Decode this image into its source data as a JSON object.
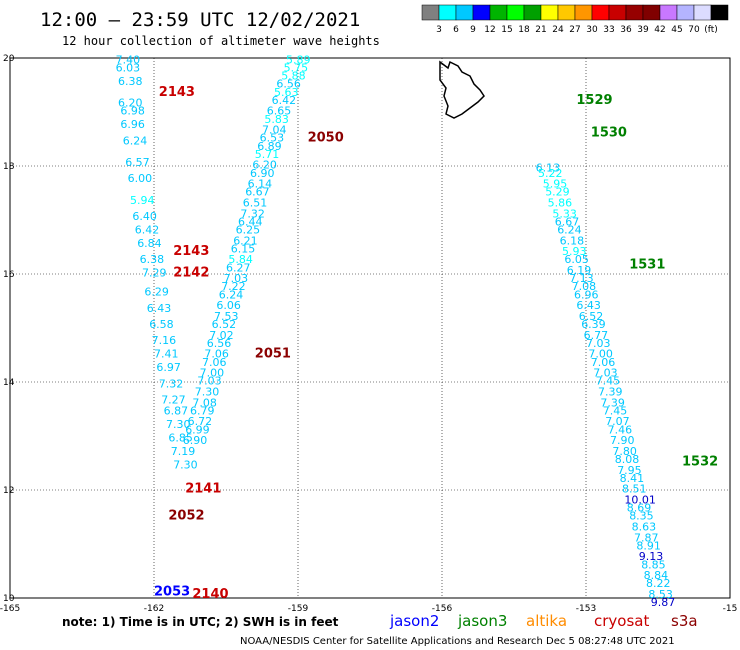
{
  "header": {
    "title": "12:00 — 23:59 UTC 12/02/2021",
    "subtitle": "12 hour collection of altimeter wave heights"
  },
  "legend": {
    "colors": [
      "#808080",
      "#00ffff",
      "#00c8ff",
      "#0000ff",
      "#00b400",
      "#00ff00",
      "#00a000",
      "#ffff00",
      "#ffc800",
      "#ff9600",
      "#ff0000",
      "#c80000",
      "#960000",
      "#800000",
      "#c878ff",
      "#b4b4ff",
      "#dcdcff",
      "#000000"
    ],
    "labels": [
      "3",
      "6",
      "9",
      "12",
      "15",
      "18",
      "21",
      "24",
      "27",
      "30",
      "33",
      "36",
      "39",
      "42",
      "45",
      "70",
      "(ft)"
    ]
  },
  "chart_data": {
    "type": "scatter",
    "title": "12 hour collection of altimeter wave heights",
    "xlabel": "",
    "ylabel": "",
    "xlim": [
      -165,
      -150
    ],
    "ylim": [
      10,
      20
    ],
    "grid": true,
    "x_ticks": [
      "-165",
      "-162",
      "-159",
      "-156",
      "-153",
      "-15"
    ],
    "y_ticks": [
      "10",
      "12",
      "14",
      "16",
      "18",
      "20"
    ],
    "swh_color_scale_ft": [
      3,
      6,
      9,
      12,
      15,
      18,
      21,
      24,
      27,
      30,
      33,
      36,
      39,
      42,
      45,
      70
    ],
    "series": [
      {
        "name": "jason2",
        "color": "#0000ff",
        "points": []
      },
      {
        "name": "jason3",
        "color": "#008000",
        "points": [
          [
            -154.05,
            17.9,
            "6.13"
          ],
          [
            -154.0,
            17.8,
            "5.22"
          ],
          [
            -153.9,
            17.6,
            "5.95"
          ],
          [
            -153.85,
            17.45,
            "5.29"
          ],
          [
            -153.8,
            17.25,
            "5.86"
          ],
          [
            -153.7,
            17.05,
            "5.33"
          ],
          [
            -153.65,
            16.9,
            "6.67"
          ],
          [
            -153.6,
            16.75,
            "6.24"
          ],
          [
            -153.55,
            16.55,
            "6.18"
          ],
          [
            -153.5,
            16.35,
            "5.93"
          ],
          [
            -153.45,
            16.2,
            "6.05"
          ],
          [
            -153.4,
            16.0,
            "6.19"
          ],
          [
            -153.35,
            15.85,
            "7.13"
          ],
          [
            -153.3,
            15.7,
            "7.08"
          ],
          [
            -153.25,
            15.55,
            "6.96"
          ],
          [
            -153.2,
            15.35,
            "6.43"
          ],
          [
            -153.15,
            15.15,
            "6.52"
          ],
          [
            -153.1,
            15.0,
            "6.39"
          ],
          [
            -153.05,
            14.8,
            "6.77"
          ],
          [
            -153.0,
            14.65,
            "7.03"
          ],
          [
            -152.95,
            14.45,
            "7.00"
          ],
          [
            -152.9,
            14.3,
            "7.06"
          ],
          [
            -152.85,
            14.1,
            "7.03"
          ],
          [
            -152.8,
            13.95,
            "7.45"
          ],
          [
            -152.75,
            13.75,
            "7.39"
          ],
          [
            -152.7,
            13.55,
            "7.39"
          ],
          [
            -152.65,
            13.4,
            "7.45"
          ],
          [
            -152.6,
            13.2,
            "7.07"
          ],
          [
            -152.55,
            13.05,
            "7.46"
          ],
          [
            -152.5,
            12.85,
            "7.90"
          ],
          [
            -152.45,
            12.65,
            "7.80"
          ],
          [
            -152.4,
            12.5,
            "8.08"
          ],
          [
            -152.35,
            12.3,
            "7.95"
          ],
          [
            -152.3,
            12.15,
            "8.41"
          ],
          [
            -152.25,
            11.95,
            "8.51"
          ],
          [
            -152.2,
            11.75,
            "10.01"
          ],
          [
            -152.15,
            11.6,
            "8.69"
          ],
          [
            -152.1,
            11.45,
            "8.35"
          ],
          [
            -152.05,
            11.25,
            "8.63"
          ],
          [
            -152.0,
            11.05,
            "7.87"
          ],
          [
            -151.95,
            10.9,
            "8.91"
          ],
          [
            -151.9,
            10.7,
            "9.13"
          ],
          [
            -151.85,
            10.55,
            "8.85"
          ],
          [
            -151.8,
            10.35,
            "8.84"
          ],
          [
            -151.75,
            10.2,
            "8.22"
          ],
          [
            -151.7,
            10.0,
            "8.53"
          ],
          [
            -151.65,
            9.85,
            "9.87"
          ]
        ]
      },
      {
        "name": "altika",
        "color": "#ff8c00",
        "points": []
      },
      {
        "name": "cryosat",
        "color": "#c80000",
        "points": [
          [
            -159.25,
            19.9,
            "5.89"
          ],
          [
            -159.3,
            19.75,
            "5.75"
          ],
          [
            -159.35,
            19.6,
            "5.88"
          ],
          [
            -159.45,
            19.45,
            "6.56"
          ],
          [
            -159.5,
            19.3,
            "5.63"
          ],
          [
            -159.55,
            19.15,
            "6.42"
          ],
          [
            -159.65,
            18.95,
            "6.65"
          ],
          [
            -159.7,
            18.8,
            "5.83"
          ],
          [
            -159.75,
            18.6,
            "7.04"
          ],
          [
            -159.8,
            18.45,
            "6.53"
          ],
          [
            -159.85,
            18.3,
            "6.89"
          ],
          [
            -159.9,
            18.15,
            "5.71"
          ],
          [
            -159.95,
            17.95,
            "6.20"
          ],
          [
            -160.0,
            17.8,
            "6.90"
          ],
          [
            -160.05,
            17.6,
            "6.14"
          ],
          [
            -160.1,
            17.45,
            "6.67"
          ],
          [
            -160.15,
            17.25,
            "6.51"
          ],
          [
            -160.2,
            17.05,
            "7.32"
          ],
          [
            -160.25,
            16.9,
            "6.44"
          ],
          [
            -160.3,
            16.75,
            "6.25"
          ],
          [
            -160.35,
            16.55,
            "6.21"
          ],
          [
            -160.4,
            16.4,
            "6.15"
          ],
          [
            -160.45,
            16.2,
            "5.84"
          ],
          [
            -160.5,
            16.05,
            "6.27"
          ],
          [
            -160.55,
            15.85,
            "7.03"
          ],
          [
            -160.6,
            15.7,
            "7.22"
          ],
          [
            -160.65,
            15.55,
            "6.24"
          ],
          [
            -160.7,
            15.35,
            "6.06"
          ],
          [
            -160.75,
            15.15,
            "7.53"
          ],
          [
            -160.8,
            15.0,
            "6.52"
          ],
          [
            -160.85,
            14.8,
            "7.02"
          ],
          [
            -160.9,
            14.65,
            "6.56"
          ],
          [
            -160.95,
            14.45,
            "7.06"
          ],
          [
            -161.0,
            14.3,
            "7.06"
          ],
          [
            -161.05,
            14.1,
            "7.00"
          ],
          [
            -161.1,
            13.95,
            "7.03"
          ],
          [
            -161.15,
            13.75,
            "7.30"
          ],
          [
            -161.2,
            13.55,
            "7.08"
          ],
          [
            -161.25,
            13.4,
            "6.79"
          ],
          [
            -161.3,
            13.2,
            "6.72"
          ],
          [
            -161.35,
            13.05,
            "6.99"
          ],
          [
            -161.4,
            12.85,
            "6.90"
          ]
        ]
      },
      {
        "name": "s3a",
        "color": "#8b0000",
        "points": [
          [
            -162.8,
            19.9,
            "7.40"
          ],
          [
            -162.8,
            19.75,
            "6.03"
          ],
          [
            -162.75,
            19.5,
            "6.38"
          ],
          [
            -162.75,
            19.1,
            "6.20"
          ],
          [
            -162.7,
            18.95,
            "6.98"
          ],
          [
            -162.7,
            18.7,
            "6.96"
          ],
          [
            -162.65,
            18.4,
            "6.24"
          ],
          [
            -162.6,
            18.0,
            "6.57"
          ],
          [
            -162.55,
            17.7,
            "6.00"
          ],
          [
            -162.5,
            17.3,
            "5.94"
          ],
          [
            -162.45,
            17.0,
            "6.40"
          ],
          [
            -162.4,
            16.75,
            "6.42"
          ],
          [
            -162.35,
            16.5,
            "6.84"
          ],
          [
            -162.3,
            16.2,
            "6.38"
          ],
          [
            -162.25,
            15.95,
            "7.29"
          ],
          [
            -162.2,
            15.6,
            "6.29"
          ],
          [
            -162.15,
            15.3,
            "6.43"
          ],
          [
            -162.1,
            15.0,
            "6.58"
          ],
          [
            -162.05,
            14.7,
            "7.16"
          ],
          [
            -162.0,
            14.45,
            "7.41"
          ],
          [
            -161.95,
            14.2,
            "6.97"
          ],
          [
            -161.9,
            13.9,
            "7.32"
          ],
          [
            -161.85,
            13.6,
            "7.27"
          ],
          [
            -161.8,
            13.4,
            "6.87"
          ],
          [
            -161.75,
            13.15,
            "7.30"
          ],
          [
            -161.7,
            12.9,
            "6.85"
          ],
          [
            -161.65,
            12.65,
            "7.19"
          ],
          [
            -161.6,
            12.4,
            "7.30"
          ]
        ]
      }
    ],
    "pass_labels": [
      {
        "text": "1529",
        "x": -153.2,
        "y": 19.15,
        "satellite": "jason3"
      },
      {
        "text": "1530",
        "x": -152.9,
        "y": 18.55,
        "satellite": "jason3"
      },
      {
        "text": "1531",
        "x": -152.1,
        "y": 16.1,
        "satellite": "jason3"
      },
      {
        "text": "1532",
        "x": -151.0,
        "y": 12.45,
        "satellite": "jason3"
      },
      {
        "text": "2143",
        "x": -161.9,
        "y": 19.3,
        "satellite": "cryosat"
      },
      {
        "text": "2143",
        "x": -161.6,
        "y": 16.35,
        "satellite": "cryosat"
      },
      {
        "text": "2142",
        "x": -161.6,
        "y": 15.95,
        "satellite": "cryosat"
      },
      {
        "text": "2141",
        "x": -161.35,
        "y": 11.95,
        "satellite": "cryosat"
      },
      {
        "text": "2140",
        "x": -161.2,
        "y": 10.0,
        "satellite": "cryosat"
      },
      {
        "text": "2050",
        "x": -158.8,
        "y": 18.45,
        "satellite": "s3a"
      },
      {
        "text": "2051",
        "x": -159.9,
        "y": 14.45,
        "satellite": "s3a"
      },
      {
        "text": "2052",
        "x": -161.7,
        "y": 11.45,
        "satellite": "s3a"
      },
      {
        "text": "2053",
        "x": -162.0,
        "y": 10.05,
        "satellite": "jason2"
      }
    ]
  },
  "footer": {
    "note": "note: 1) Time is in UTC; 2) SWH is in feet",
    "satellites": [
      {
        "label": "jason2",
        "color": "#0000ff"
      },
      {
        "label": "jason3",
        "color": "#008000"
      },
      {
        "label": "altika",
        "color": "#ff8c00"
      },
      {
        "label": "cryosat",
        "color": "#c80000"
      },
      {
        "label": "s3a",
        "color": "#8b0000"
      }
    ],
    "credit": "NOAA/NESDIS Center for Satellite Applications and Research   Dec  5 08:27:48 UTC 2021"
  }
}
